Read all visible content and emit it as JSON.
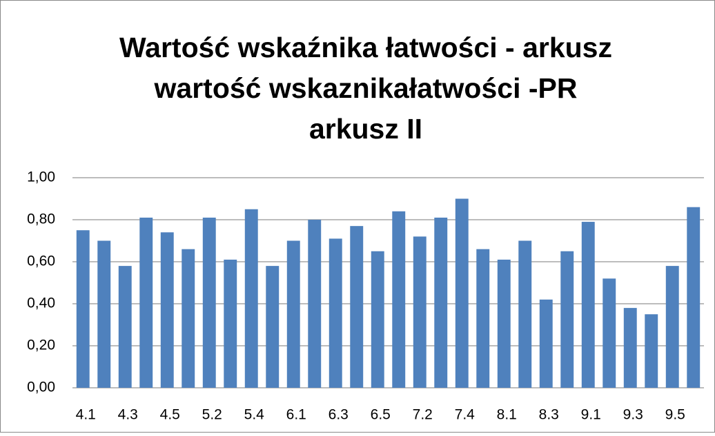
{
  "chart_data": {
    "type": "bar",
    "title": [
      "Wartość wskaźnika łatwości - arkusz",
      "wartość wskaznikałatwości -PR",
      "arkusz II"
    ],
    "categories": [
      "4.1",
      null,
      "4.3",
      null,
      "4.5",
      null,
      "5.2",
      null,
      "5.4",
      null,
      "6.1",
      null,
      "6.3",
      null,
      "6.5",
      null,
      "7.2",
      null,
      "7.4",
      null,
      "8.1",
      null,
      "8.3",
      null,
      "9.1",
      null,
      "9.3",
      null,
      "9.5",
      null
    ],
    "values": [
      0.75,
      0.7,
      0.58,
      0.81,
      0.74,
      0.66,
      0.81,
      0.61,
      0.85,
      0.58,
      0.7,
      0.8,
      0.71,
      0.77,
      0.65,
      0.84,
      0.72,
      0.81,
      0.9,
      0.66,
      0.61,
      0.7,
      0.42,
      0.65,
      0.79,
      0.52,
      0.38,
      0.35,
      0.58,
      0.86
    ],
    "color": "#4f81bd",
    "ylim": [
      0,
      1
    ],
    "yticks": [
      {
        "value": 0,
        "label": "0,00"
      },
      {
        "value": 0.2,
        "label": "0,20"
      },
      {
        "value": 0.4,
        "label": "0,40"
      },
      {
        "value": 0.6,
        "label": "0,60"
      },
      {
        "value": 0.8,
        "label": "0,80"
      },
      {
        "value": 1,
        "label": "1,00"
      }
    ],
    "grid": true
  }
}
